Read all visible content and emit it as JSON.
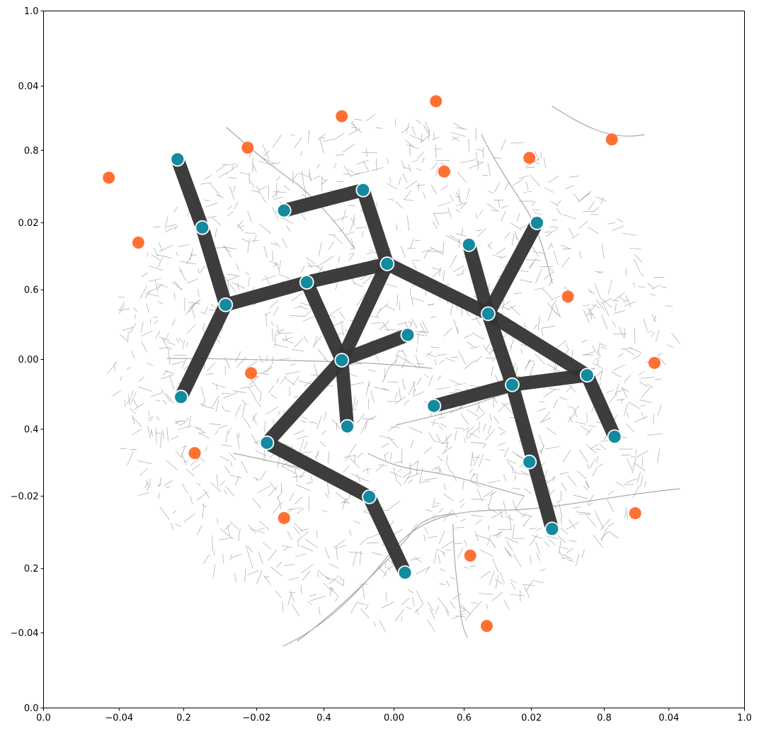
{
  "chart_data": {
    "type": "scatter",
    "title": "",
    "xlabel": "",
    "ylabel": "",
    "colors": {
      "hub": "#138a9f",
      "demand": "#ff7033",
      "edge": "#333333",
      "road": "#a8a8a8"
    },
    "outer_axis": {
      "xlim": [
        0,
        1
      ],
      "ylim": [
        0,
        1
      ],
      "xticks": [
        0.0,
        0.2,
        0.4,
        0.6,
        0.8,
        1.0
      ],
      "yticks": [
        0.0,
        0.2,
        0.4,
        0.6,
        0.8,
        1.0
      ],
      "xtick_labels": [
        "0.0",
        "0.2",
        "0.4",
        "0.6",
        "0.8",
        "1.0"
      ],
      "ytick_labels": [
        "0.0",
        "0.2",
        "0.4",
        "0.6",
        "0.8",
        "1.0"
      ]
    },
    "inner_axis": {
      "xlim": [
        -0.051,
        0.051
      ],
      "ylim": [
        -0.051,
        0.051
      ],
      "xticks": [
        -0.04,
        -0.02,
        0.0,
        0.02,
        0.04
      ],
      "yticks": [
        -0.04,
        -0.02,
        0.0,
        0.02,
        0.04
      ],
      "xtick_labels": [
        "−0.04",
        "−0.02",
        "0.00",
        "0.02",
        "0.04"
      ],
      "ytick_labels": [
        "−0.04",
        "−0.02",
        "0.00",
        "0.02",
        "0.04"
      ]
    },
    "hubs": [
      {
        "id": "A",
        "x": -0.0315,
        "y": 0.0293
      },
      {
        "id": "B",
        "x": -0.0279,
        "y": 0.0193
      },
      {
        "id": "C",
        "x": -0.0245,
        "y": 0.008
      },
      {
        "id": "D",
        "x": -0.031,
        "y": -0.0055
      },
      {
        "id": "E",
        "x": -0.016,
        "y": 0.0218
      },
      {
        "id": "F",
        "x": -0.0045,
        "y": 0.0248
      },
      {
        "id": "G",
        "x": -0.0127,
        "y": 0.0113
      },
      {
        "id": "H",
        "x": -0.001,
        "y": 0.014
      },
      {
        "id": "I",
        "x": -0.0076,
        "y": -0.0001
      },
      {
        "id": "J",
        "x": 0.002,
        "y": 0.0036
      },
      {
        "id": "K",
        "x": -0.0068,
        "y": -0.0098
      },
      {
        "id": "L",
        "x": -0.0185,
        "y": -0.0122
      },
      {
        "id": "M",
        "x": -0.0036,
        "y": -0.0201
      },
      {
        "id": "N",
        "x": 0.0016,
        "y": -0.0312
      },
      {
        "id": "O",
        "x": 0.0109,
        "y": 0.0168
      },
      {
        "id": "P",
        "x": 0.0137,
        "y": 0.0067
      },
      {
        "id": "Q",
        "x": 0.0208,
        "y": 0.02
      },
      {
        "id": "R",
        "x": 0.0172,
        "y": -0.0037
      },
      {
        "id": "S",
        "x": 0.0058,
        "y": -0.0068
      },
      {
        "id": "T",
        "x": 0.0281,
        "y": -0.0023
      },
      {
        "id": "U",
        "x": 0.0321,
        "y": -0.0113
      },
      {
        "id": "V",
        "x": 0.0197,
        "y": -0.015
      },
      {
        "id": "W",
        "x": 0.023,
        "y": -0.0248
      }
    ],
    "links": [
      [
        "A",
        "B"
      ],
      [
        "B",
        "C"
      ],
      [
        "C",
        "D"
      ],
      [
        "C",
        "G"
      ],
      [
        "G",
        "H"
      ],
      [
        "E",
        "F"
      ],
      [
        "F",
        "H"
      ],
      [
        "G",
        "I"
      ],
      [
        "H",
        "I"
      ],
      [
        "H",
        "P"
      ],
      [
        "I",
        "J"
      ],
      [
        "I",
        "K"
      ],
      [
        "I",
        "L"
      ],
      [
        "L",
        "M"
      ],
      [
        "M",
        "N"
      ],
      [
        "O",
        "P"
      ],
      [
        "P",
        "Q"
      ],
      [
        "P",
        "R"
      ],
      [
        "P",
        "T"
      ],
      [
        "R",
        "W"
      ],
      [
        "R",
        "T"
      ],
      [
        "S",
        "R"
      ],
      [
        "T",
        "U"
      ]
    ],
    "demand_points": [
      {
        "x": -0.0415,
        "y": 0.0266
      },
      {
        "x": -0.0372,
        "y": 0.0171
      },
      {
        "x": -0.0213,
        "y": 0.031
      },
      {
        "x": -0.0076,
        "y": 0.0356
      },
      {
        "x": 0.0061,
        "y": 0.0378
      },
      {
        "x": 0.0073,
        "y": 0.0275
      },
      {
        "x": 0.0197,
        "y": 0.0295
      },
      {
        "x": 0.0317,
        "y": 0.0322
      },
      {
        "x": 0.0253,
        "y": 0.0092
      },
      {
        "x": 0.0379,
        "y": -0.0005
      },
      {
        "x": -0.0208,
        "y": -0.002
      },
      {
        "x": -0.029,
        "y": -0.0137
      },
      {
        "x": -0.016,
        "y": -0.0232
      },
      {
        "x": 0.0111,
        "y": -0.0287
      },
      {
        "x": 0.0135,
        "y": -0.039
      },
      {
        "x": 0.0351,
        "y": -0.0225
      }
    ]
  }
}
